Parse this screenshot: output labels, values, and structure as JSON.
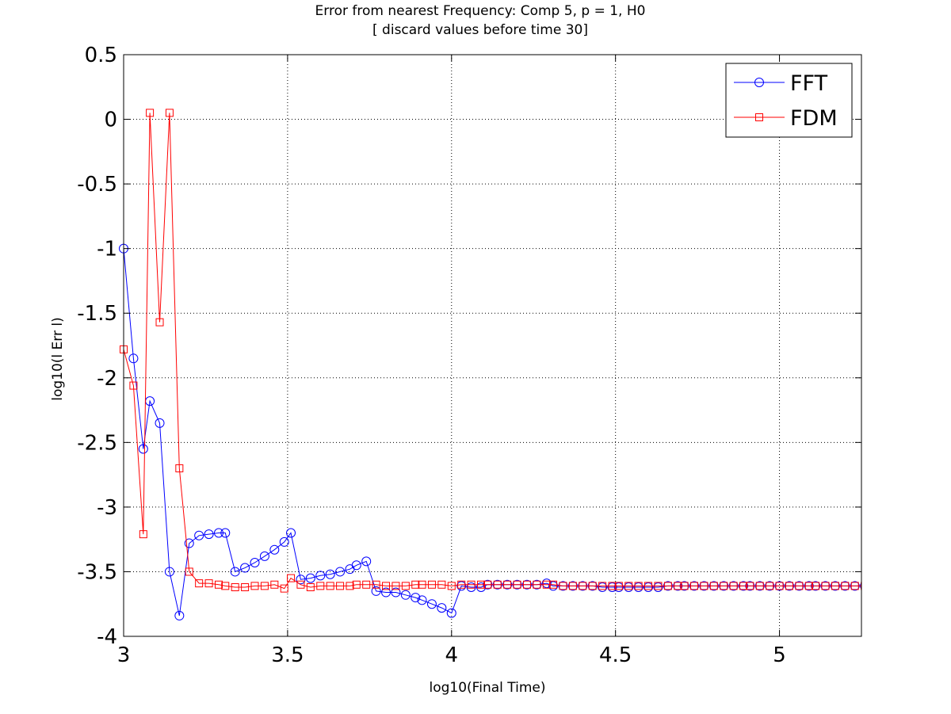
{
  "chart_data": {
    "type": "line",
    "title": "Error from nearest Frequency: Comp 5, p = 1, H0",
    "subtitle": "[ discard values before time 30]",
    "xlabel": "log10(Final Time)",
    "ylabel": "log10(l Err l)",
    "xlim": [
      3,
      5.25
    ],
    "ylim": [
      -4,
      0.5
    ],
    "xticks": [
      3,
      3.5,
      4,
      4.5,
      5
    ],
    "xtick_labels": [
      "3",
      "3.5",
      "4",
      "4.5",
      "5"
    ],
    "yticks": [
      0.5,
      0,
      -0.5,
      -1,
      -1.5,
      -2,
      -2.5,
      -3,
      -3.5,
      -4
    ],
    "ytick_labels": [
      "0.5",
      "0",
      "-0.5",
      "-1",
      "-1.5",
      "-2",
      "-2.5",
      "-3",
      "-3.5",
      "-4"
    ],
    "grid": true,
    "legend_position": "top-right",
    "series": [
      {
        "name": "FFT",
        "color": "#0000ff",
        "marker": "circle",
        "x": [
          3.0,
          3.03,
          3.06,
          3.08,
          3.11,
          3.14,
          3.17,
          3.2,
          3.23,
          3.26,
          3.29,
          3.31,
          3.34,
          3.37,
          3.4,
          3.43,
          3.46,
          3.49,
          3.51,
          3.54,
          3.57,
          3.6,
          3.63,
          3.66,
          3.69,
          3.71,
          3.74,
          3.77,
          3.8,
          3.83,
          3.86,
          3.89,
          3.91,
          3.94,
          3.97,
          4.0,
          4.03,
          4.06,
          4.09,
          4.11,
          4.14,
          4.17,
          4.2,
          4.23,
          4.26,
          4.29,
          4.31,
          4.34,
          4.37,
          4.4,
          4.43,
          4.46,
          4.49,
          4.51,
          4.54,
          4.57,
          4.6,
          4.63,
          4.66,
          4.69,
          4.71,
          4.74,
          4.77,
          4.8,
          4.83,
          4.86,
          4.89,
          4.91,
          4.94,
          4.97,
          5.0,
          5.03,
          5.06,
          5.09,
          5.11,
          5.14,
          5.17,
          5.2,
          5.23,
          5.26
        ],
        "y": [
          -1.0,
          -1.85,
          -2.55,
          -2.18,
          -2.35,
          -3.5,
          -3.84,
          -3.28,
          -3.22,
          -3.21,
          -3.2,
          -3.2,
          -3.5,
          -3.47,
          -3.43,
          -3.38,
          -3.33,
          -3.27,
          -3.2,
          -3.56,
          -3.55,
          -3.53,
          -3.52,
          -3.5,
          -3.48,
          -3.45,
          -3.42,
          -3.65,
          -3.66,
          -3.66,
          -3.68,
          -3.7,
          -3.72,
          -3.75,
          -3.78,
          -3.82,
          -3.61,
          -3.62,
          -3.62,
          -3.6,
          -3.6,
          -3.6,
          -3.6,
          -3.6,
          -3.6,
          -3.59,
          -3.61,
          -3.61,
          -3.61,
          -3.61,
          -3.61,
          -3.62,
          -3.62,
          -3.62,
          -3.62,
          -3.62,
          -3.62,
          -3.62,
          -3.61,
          -3.61,
          -3.61,
          -3.61,
          -3.61,
          -3.61,
          -3.61,
          -3.61,
          -3.61,
          -3.61,
          -3.61,
          -3.61,
          -3.61,
          -3.61,
          -3.61,
          -3.61,
          -3.61,
          -3.61,
          -3.61,
          -3.61,
          -3.61,
          -3.61
        ]
      },
      {
        "name": "FDM",
        "color": "#ff0000",
        "marker": "square",
        "x": [
          3.0,
          3.03,
          3.06,
          3.08,
          3.11,
          3.14,
          3.17,
          3.2,
          3.23,
          3.26,
          3.29,
          3.31,
          3.34,
          3.37,
          3.4,
          3.43,
          3.46,
          3.49,
          3.51,
          3.54,
          3.57,
          3.6,
          3.63,
          3.66,
          3.69,
          3.71,
          3.74,
          3.77,
          3.8,
          3.83,
          3.86,
          3.89,
          3.91,
          3.94,
          3.97,
          4.0,
          4.03,
          4.06,
          4.09,
          4.11,
          4.14,
          4.17,
          4.2,
          4.23,
          4.26,
          4.29,
          4.31,
          4.34,
          4.37,
          4.4,
          4.43,
          4.46,
          4.49,
          4.51,
          4.54,
          4.57,
          4.6,
          4.63,
          4.66,
          4.69,
          4.71,
          4.74,
          4.77,
          4.8,
          4.83,
          4.86,
          4.89,
          4.91,
          4.94,
          4.97,
          5.0,
          5.03,
          5.06,
          5.09,
          5.11,
          5.14,
          5.17,
          5.2,
          5.23,
          5.26
        ],
        "y": [
          -1.78,
          -2.06,
          -3.21,
          0.05,
          -1.57,
          0.05,
          -2.7,
          -3.5,
          -3.59,
          -3.59,
          -3.6,
          -3.61,
          -3.62,
          -3.62,
          -3.61,
          -3.61,
          -3.6,
          -3.63,
          -3.55,
          -3.6,
          -3.62,
          -3.61,
          -3.61,
          -3.61,
          -3.61,
          -3.6,
          -3.6,
          -3.6,
          -3.61,
          -3.61,
          -3.61,
          -3.6,
          -3.6,
          -3.6,
          -3.6,
          -3.61,
          -3.6,
          -3.6,
          -3.6,
          -3.6,
          -3.6,
          -3.6,
          -3.6,
          -3.6,
          -3.6,
          -3.6,
          -3.6,
          -3.61,
          -3.61,
          -3.61,
          -3.61,
          -3.61,
          -3.61,
          -3.61,
          -3.61,
          -3.61,
          -3.61,
          -3.61,
          -3.61,
          -3.61,
          -3.61,
          -3.61,
          -3.61,
          -3.61,
          -3.61,
          -3.61,
          -3.61,
          -3.61,
          -3.61,
          -3.61,
          -3.61,
          -3.61,
          -3.61,
          -3.61,
          -3.61,
          -3.61,
          -3.61,
          -3.61,
          -3.61,
          -3.61
        ]
      }
    ]
  }
}
